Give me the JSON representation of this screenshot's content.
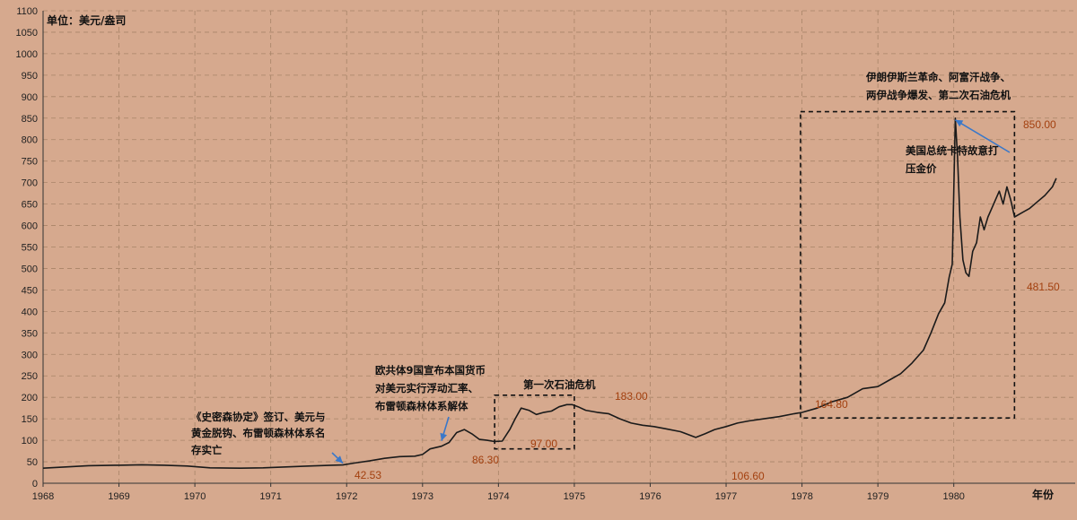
{
  "chart_data": {
    "type": "line",
    "unit_label": "单位：美元/盎司",
    "xlabel": "年份",
    "x_ticks": [
      "1968",
      "1969",
      "1970",
      "1971",
      "1972",
      "1973",
      "1974",
      "1975",
      "1976",
      "1977",
      "1978",
      "1979",
      "1980"
    ],
    "y_ticks": [
      "0",
      "50",
      "100",
      "150",
      "200",
      "250",
      "300",
      "350",
      "400",
      "450",
      "500",
      "550",
      "600",
      "650",
      "700",
      "750",
      "800",
      "850",
      "900",
      "950",
      "1000",
      "1050",
      "1100"
    ],
    "xlim": [
      1968,
      1981.6
    ],
    "ylim": [
      0,
      1100
    ],
    "grid": true,
    "colors": {
      "background": "#d6a98e",
      "line": "#1a1a1a",
      "grid": "#a88468",
      "value_label": "#a3400f",
      "arrow": "#3a78c9"
    },
    "series": [
      {
        "x": [
          1968.0,
          1968.3,
          1968.6,
          1969.0,
          1969.3,
          1969.6,
          1969.9,
          1970.2,
          1970.6,
          1970.9,
          1971.2,
          1971.5,
          1971.8,
          1971.95,
          1972.1,
          1972.3,
          1972.5,
          1972.7,
          1972.9,
          1973.0,
          1973.1,
          1973.25,
          1973.35,
          1973.45,
          1973.55,
          1973.65,
          1973.75,
          1973.85,
          1973.95,
          1974.05,
          1974.15,
          1974.22,
          1974.3,
          1974.4,
          1974.5,
          1974.6,
          1974.7,
          1974.8,
          1974.9,
          1974.97,
          1975.05,
          1975.15,
          1975.3,
          1975.45,
          1975.6,
          1975.75,
          1975.9,
          1976.05,
          1976.2,
          1976.4,
          1976.6,
          1976.72,
          1976.85,
          1977.0,
          1977.15,
          1977.3,
          1977.5,
          1977.7,
          1977.9,
          1978.0,
          1978.2,
          1978.4,
          1978.6,
          1978.8,
          1979.0,
          1979.15,
          1979.3,
          1979.45,
          1979.6,
          1979.7,
          1979.8,
          1979.88,
          1979.94,
          1979.98,
          1980.02,
          1980.05,
          1980.08,
          1980.12,
          1980.16,
          1980.2,
          1980.25,
          1980.3,
          1980.35,
          1980.4,
          1980.45,
          1980.5,
          1980.55,
          1980.6,
          1980.65,
          1980.7,
          1980.75,
          1980.8,
          1980.9,
          1981.0,
          1981.1,
          1981.2,
          1981.3,
          1981.35
        ],
        "values": [
          35,
          38,
          41,
          42,
          43,
          42,
          40,
          36,
          35,
          36,
          38,
          40,
          42,
          42.53,
          47,
          52,
          58,
          62,
          63,
          67,
          80,
          86.3,
          95,
          118,
          125,
          115,
          102,
          100,
          97,
          98,
          125,
          150,
          175,
          170,
          160,
          165,
          168,
          178,
          183,
          183,
          178,
          170,
          165,
          162,
          150,
          140,
          135,
          132,
          127,
          120,
          106.6,
          115,
          125,
          132,
          140,
          145,
          150,
          155,
          162,
          164.8,
          175,
          190,
          200,
          220,
          225,
          240,
          255,
          280,
          310,
          350,
          395,
          420,
          480,
          510,
          850,
          760,
          620,
          520,
          490,
          481.5,
          540,
          560,
          620,
          590,
          620,
          640,
          660,
          680,
          650,
          690,
          660,
          620,
          630,
          640,
          655,
          670,
          690,
          710
        ]
      }
    ],
    "value_labels": [
      "42.53",
      "86.30",
      "97.00",
      "183.00",
      "106.60",
      "164.80",
      "850.00",
      "481.50"
    ],
    "annotations": {
      "bretton_woods_line1": "《史密森协定》签订、美元与",
      "bretton_woods_line2": "黄金脱钩、布雷顿森林体系名",
      "bretton_woods_line3": "存实亡",
      "float_line1": "欧共体9国宣布本国货币",
      "float_line2": "对美元实行浮动汇率、",
      "float_line3": "布雷顿森林体系解体",
      "oil_crisis_1": "第一次石油危机",
      "iran_line1": "伊朗伊斯兰革命、阿富汗战争、",
      "iran_line2": "两伊战争爆发、第二次石油危机",
      "carter_line1": "美国总统卡特故意打",
      "carter_line2": "压金价"
    }
  }
}
